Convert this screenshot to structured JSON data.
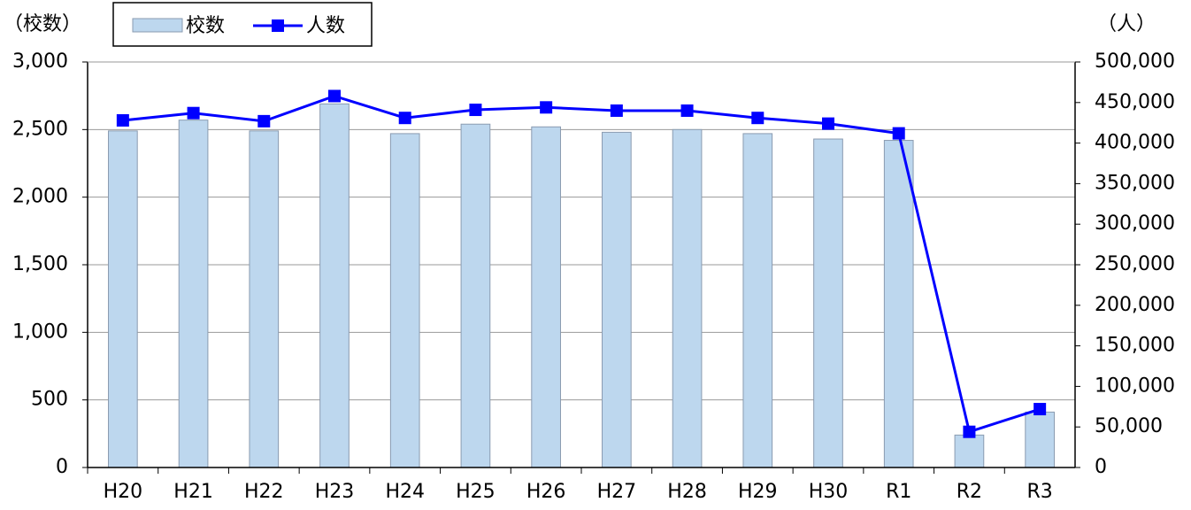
{
  "chart_data": {
    "type": "bar_line",
    "y_axis_label": "（校数）",
    "y2_axis_label": "（人）",
    "categories": [
      "H20",
      "H21",
      "H22",
      "H23",
      "H24",
      "H25",
      "H26",
      "H27",
      "H28",
      "H29",
      "H30",
      "R1",
      "R2",
      "R3"
    ],
    "series": [
      {
        "name": "校数",
        "type": "bar",
        "color": "#bdd7ee",
        "values": [
          2490,
          2570,
          2490,
          2690,
          2470,
          2540,
          2520,
          2480,
          2500,
          2470,
          2430,
          2420,
          240,
          410
        ]
      },
      {
        "name": "人数",
        "type": "line",
        "axis": "y2",
        "color": "#0000ff",
        "values": [
          428000,
          437000,
          427000,
          458000,
          431000,
          441000,
          444000,
          440000,
          440000,
          431000,
          424000,
          412000,
          44000,
          72000
        ]
      }
    ],
    "ylim": [
      0,
      3000
    ],
    "yticks": [
      0,
      500,
      {
        "value": 1000,
        "label": "1,000"
      },
      {
        "value": 1500,
        "label": "1,500"
      },
      {
        "value": 2000,
        "label": "2,000"
      },
      {
        "value": 2500,
        "label": "2,500"
      },
      {
        "value": 3000,
        "label": "3,000"
      }
    ],
    "y2lim": [
      0,
      500000
    ],
    "y2ticks": [
      0,
      {
        "value": 50000,
        "label": "50,000"
      },
      {
        "value": 100000,
        "label": "100,000"
      },
      {
        "value": 150000,
        "label": "150,000"
      },
      {
        "value": 200000,
        "label": "200,000"
      },
      {
        "value": 250000,
        "label": "250,000"
      },
      {
        "value": 300000,
        "label": "300,000"
      },
      {
        "value": 350000,
        "label": "350,000"
      },
      {
        "value": 400000,
        "label": "400,000"
      },
      {
        "value": 450000,
        "label": "450,000"
      },
      {
        "value": 500000,
        "label": "500,000"
      }
    ],
    "grid": true
  }
}
